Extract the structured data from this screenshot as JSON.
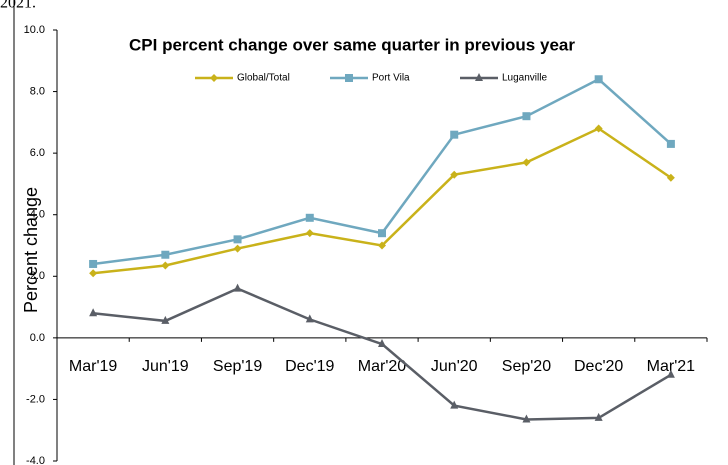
{
  "chart_data": {
    "type": "line",
    "annotation": "2021.",
    "title": "CPI percent change over same quarter in previous year",
    "y_label": "Percent change",
    "categories": [
      "Mar'19",
      "Jun'19",
      "Sep'19",
      "Dec'19",
      "Mar'20",
      "Jun'20",
      "Sep'20",
      "Dec'20",
      "Mar'21"
    ],
    "series": [
      {
        "name": "Global/Total",
        "color": "#c9b21a",
        "marker": "diamond",
        "values": [
          2.1,
          2.35,
          2.9,
          3.4,
          3.0,
          5.3,
          5.7,
          6.8,
          5.2
        ]
      },
      {
        "name": "Port Vila",
        "color": "#6fa8bf",
        "marker": "square",
        "values": [
          2.4,
          2.7,
          3.2,
          3.9,
          3.4,
          6.6,
          7.2,
          8.4,
          6.3
        ]
      },
      {
        "name": "Luganville",
        "color": "#5a5e66",
        "marker": "triangle",
        "values": [
          0.8,
          0.55,
          1.6,
          0.6,
          -0.2,
          -2.2,
          -2.65,
          -2.6,
          -1.2
        ]
      }
    ],
    "ylim": [
      -4,
      10
    ],
    "yticks": [
      {
        "value": -4,
        "label": "-4.0"
      },
      {
        "value": -2,
        "label": "-2.0"
      },
      {
        "value": 0,
        "label": "0.0"
      },
      {
        "value": 2,
        "label": "2.0"
      },
      {
        "value": 4,
        "label": "4.0"
      },
      {
        "value": 6,
        "label": "6.0"
      },
      {
        "value": 8,
        "label": "8.0"
      },
      {
        "value": 10,
        "label": "10.0"
      }
    ],
    "legend": "top",
    "grid": false
  }
}
